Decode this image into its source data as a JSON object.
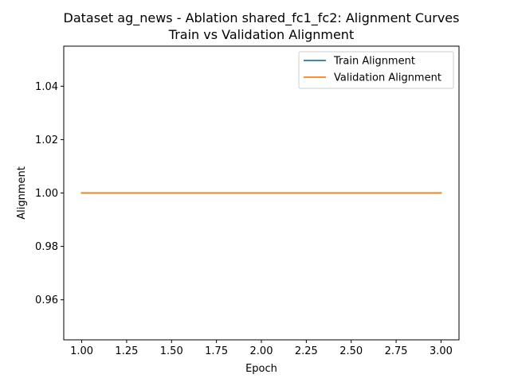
{
  "chart_data": {
    "type": "line",
    "title": "Dataset ag_news - Ablation shared_fc1_fc2: Alignment Curves",
    "subtitle": "Train vs Validation Alignment",
    "xlabel": "Epoch",
    "ylabel": "Alignment",
    "x": [
      1,
      2,
      3
    ],
    "series": [
      {
        "name": "Train Alignment",
        "values": [
          1.0,
          1.0,
          1.0
        ],
        "color": "#1f77b4"
      },
      {
        "name": "Validation Alignment",
        "values": [
          1.0,
          1.0,
          1.0
        ],
        "color": "#ff7f0e"
      }
    ],
    "xlim": [
      0.9,
      3.1
    ],
    "ylim": [
      0.945,
      1.055
    ],
    "x_ticks": [
      1.0,
      1.25,
      1.5,
      1.75,
      2.0,
      2.25,
      2.5,
      2.75,
      3.0
    ],
    "x_tick_labels": [
      "1.00",
      "1.25",
      "1.50",
      "1.75",
      "2.00",
      "2.25",
      "2.50",
      "2.75",
      "3.00"
    ],
    "y_ticks": [
      0.96,
      0.98,
      1.0,
      1.02,
      1.04
    ],
    "y_tick_labels": [
      "0.96",
      "0.98",
      "1.00",
      "1.02",
      "1.04"
    ],
    "grid": false,
    "legend_position": "upper right"
  }
}
